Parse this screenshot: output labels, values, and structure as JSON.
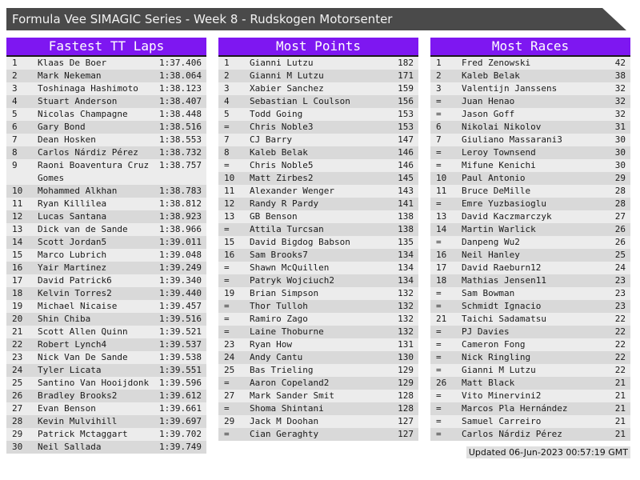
{
  "title": "Formula Vee SIMAGIC Series - Week 8 - Rudskogen Motorsenter",
  "colors": {
    "titlebar_bg": "#4a4a4a",
    "accent_purple": "#7e17f1",
    "header_underline": "#1b1b1b",
    "row_light": "#ececec",
    "row_dark": "#d9d9d9",
    "footer_bg": "#e0e0e0"
  },
  "panels": [
    {
      "title": "Fastest TT Laps",
      "rows": [
        {
          "rank": "1",
          "name": "Klaas De Boer",
          "value": "1:37.406"
        },
        {
          "rank": "2",
          "name": "Mark Nekeman",
          "value": "1:38.064"
        },
        {
          "rank": "3",
          "name": "Toshinaga Hashimoto",
          "value": "1:38.123"
        },
        {
          "rank": "4",
          "name": "Stuart Anderson",
          "value": "1:38.407"
        },
        {
          "rank": "5",
          "name": "Nicolas Champagne",
          "value": "1:38.448"
        },
        {
          "rank": "6",
          "name": "Gary Bond",
          "value": "1:38.516"
        },
        {
          "rank": "7",
          "name": "Dean Hosken",
          "value": "1:38.553"
        },
        {
          "rank": "8",
          "name": "Carlos Nárdiz Pérez",
          "value": "1:38.732"
        },
        {
          "rank": "9",
          "name": "Raoni Boaventura Cruz Gomes",
          "value": "1:38.757"
        },
        {
          "rank": "10",
          "name": "Mohammed Alkhan",
          "value": "1:38.783"
        },
        {
          "rank": "11",
          "name": "Ryan Killilea",
          "value": "1:38.812"
        },
        {
          "rank": "12",
          "name": "Lucas Santana",
          "value": "1:38.923"
        },
        {
          "rank": "13",
          "name": "Dick van de Sande",
          "value": "1:38.966"
        },
        {
          "rank": "14",
          "name": "Scott Jordan5",
          "value": "1:39.011"
        },
        {
          "rank": "15",
          "name": "Marco Lubrich",
          "value": "1:39.048"
        },
        {
          "rank": "16",
          "name": "Yair Martinez",
          "value": "1:39.249"
        },
        {
          "rank": "17",
          "name": "David Patrick6",
          "value": "1:39.340"
        },
        {
          "rank": "18",
          "name": "Kelvin Torres2",
          "value": "1:39.440"
        },
        {
          "rank": "19",
          "name": "Michael Nicaise",
          "value": "1:39.457"
        },
        {
          "rank": "20",
          "name": "Shin Chiba",
          "value": "1:39.516"
        },
        {
          "rank": "21",
          "name": "Scott Allen Quinn",
          "value": "1:39.521"
        },
        {
          "rank": "22",
          "name": "Robert Lynch4",
          "value": "1:39.537"
        },
        {
          "rank": "23",
          "name": "Nick Van De Sande",
          "value": "1:39.538"
        },
        {
          "rank": "24",
          "name": "Tyler Licata",
          "value": "1:39.551"
        },
        {
          "rank": "25",
          "name": "Santino Van Hooijdonk",
          "value": "1:39.596"
        },
        {
          "rank": "26",
          "name": "Bradley Brooks2",
          "value": "1:39.612"
        },
        {
          "rank": "27",
          "name": "Evan Benson",
          "value": "1:39.661"
        },
        {
          "rank": "28",
          "name": "Kevin Mulvihill",
          "value": "1:39.697"
        },
        {
          "rank": "29",
          "name": "Patrick Mctaggart",
          "value": "1:39.702"
        },
        {
          "rank": "30",
          "name": "Neil Sallada",
          "value": "1:39.749"
        }
      ]
    },
    {
      "title": "Most Points",
      "rows": [
        {
          "rank": "1",
          "name": "Gianni Lutzu",
          "value": "182"
        },
        {
          "rank": "2",
          "name": "Gianni M Lutzu",
          "value": "171"
        },
        {
          "rank": "3",
          "name": "Xabier Sanchez",
          "value": "159"
        },
        {
          "rank": "4",
          "name": "Sebastian L Coulson",
          "value": "156"
        },
        {
          "rank": "5",
          "name": "Todd Going",
          "value": "153"
        },
        {
          "rank": "=",
          "name": "Chris Noble3",
          "value": "153"
        },
        {
          "rank": "7",
          "name": "CJ Barry",
          "value": "147"
        },
        {
          "rank": "8",
          "name": "Kaleb Belak",
          "value": "146"
        },
        {
          "rank": "=",
          "name": "Chris Noble5",
          "value": "146"
        },
        {
          "rank": "10",
          "name": "Matt Zirbes2",
          "value": "145"
        },
        {
          "rank": "11",
          "name": "Alexander Wenger",
          "value": "143"
        },
        {
          "rank": "12",
          "name": "Randy R Pardy",
          "value": "141"
        },
        {
          "rank": "13",
          "name": "GB Benson",
          "value": "138"
        },
        {
          "rank": "=",
          "name": "Attila Turcsan",
          "value": "138"
        },
        {
          "rank": "15",
          "name": "David Bigdog Babson",
          "value": "135"
        },
        {
          "rank": "16",
          "name": "Sam Brooks7",
          "value": "134"
        },
        {
          "rank": "=",
          "name": "Shawn McQuillen",
          "value": "134"
        },
        {
          "rank": "=",
          "name": "Patryk Wojciuch2",
          "value": "134"
        },
        {
          "rank": "19",
          "name": "Brian Simpson",
          "value": "132"
        },
        {
          "rank": "=",
          "name": "Thor Tulloh",
          "value": "132"
        },
        {
          "rank": "=",
          "name": "Ramiro Zago",
          "value": "132"
        },
        {
          "rank": "=",
          "name": "Laine Thoburne",
          "value": "132"
        },
        {
          "rank": "23",
          "name": "Ryan How",
          "value": "131"
        },
        {
          "rank": "24",
          "name": "Andy Cantu",
          "value": "130"
        },
        {
          "rank": "25",
          "name": "Bas Trieling",
          "value": "129"
        },
        {
          "rank": "=",
          "name": "Aaron Copeland2",
          "value": "129"
        },
        {
          "rank": "27",
          "name": "Mark Sander Smit",
          "value": "128"
        },
        {
          "rank": "=",
          "name": "Shoma Shintani",
          "value": "128"
        },
        {
          "rank": "29",
          "name": "Jack M Doohan",
          "value": "127"
        },
        {
          "rank": "=",
          "name": "Cian Geraghty",
          "value": "127"
        }
      ]
    },
    {
      "title": "Most Races",
      "rows": [
        {
          "rank": "1",
          "name": "Fred Zenowski",
          "value": "42"
        },
        {
          "rank": "2",
          "name": "Kaleb Belak",
          "value": "38"
        },
        {
          "rank": "3",
          "name": "Valentijn Janssens",
          "value": "32"
        },
        {
          "rank": "=",
          "name": "Juan Henao",
          "value": "32"
        },
        {
          "rank": "=",
          "name": "Jason Goff",
          "value": "32"
        },
        {
          "rank": "6",
          "name": "Nikolai Nikolov",
          "value": "31"
        },
        {
          "rank": "7",
          "name": "Giuliano Massarani3",
          "value": "30"
        },
        {
          "rank": "=",
          "name": "Leroy Townsend",
          "value": "30"
        },
        {
          "rank": "=",
          "name": "Mifune Kenichi",
          "value": "30"
        },
        {
          "rank": "10",
          "name": "Paul Antonio",
          "value": "29"
        },
        {
          "rank": "11",
          "name": "Bruce DeMille",
          "value": "28"
        },
        {
          "rank": "=",
          "name": "Emre Yuzbasioglu",
          "value": "28"
        },
        {
          "rank": "13",
          "name": "David Kaczmarczyk",
          "value": "27"
        },
        {
          "rank": "14",
          "name": "Martin Warlick",
          "value": "26"
        },
        {
          "rank": "=",
          "name": "Danpeng Wu2",
          "value": "26"
        },
        {
          "rank": "16",
          "name": "Neil Hanley",
          "value": "25"
        },
        {
          "rank": "17",
          "name": "David Raeburn12",
          "value": "24"
        },
        {
          "rank": "18",
          "name": "Mathias Jensen11",
          "value": "23"
        },
        {
          "rank": "=",
          "name": "Sam Bowman",
          "value": "23"
        },
        {
          "rank": "=",
          "name": "Schmidt Ignacio",
          "value": "23"
        },
        {
          "rank": "21",
          "name": "Taichi Sadamatsu",
          "value": "22"
        },
        {
          "rank": "=",
          "name": "PJ Davies",
          "value": "22"
        },
        {
          "rank": "=",
          "name": "Cameron Fong",
          "value": "22"
        },
        {
          "rank": "=",
          "name": "Nick Ringling",
          "value": "22"
        },
        {
          "rank": "=",
          "name": "Gianni M Lutzu",
          "value": "22"
        },
        {
          "rank": "26",
          "name": "Matt Black",
          "value": "21"
        },
        {
          "rank": "=",
          "name": "Vito Minervini2",
          "value": "21"
        },
        {
          "rank": "=",
          "name": "Marcos Pla Hernández",
          "value": "21"
        },
        {
          "rank": "=",
          "name": "Samuel Carreiro",
          "value": "21"
        },
        {
          "rank": "=",
          "name": "Carlos Nárdiz Pérez",
          "value": "21"
        }
      ]
    }
  ],
  "footer": {
    "updated": "Updated 06-Jun-2023 00:57:19 GMT"
  }
}
